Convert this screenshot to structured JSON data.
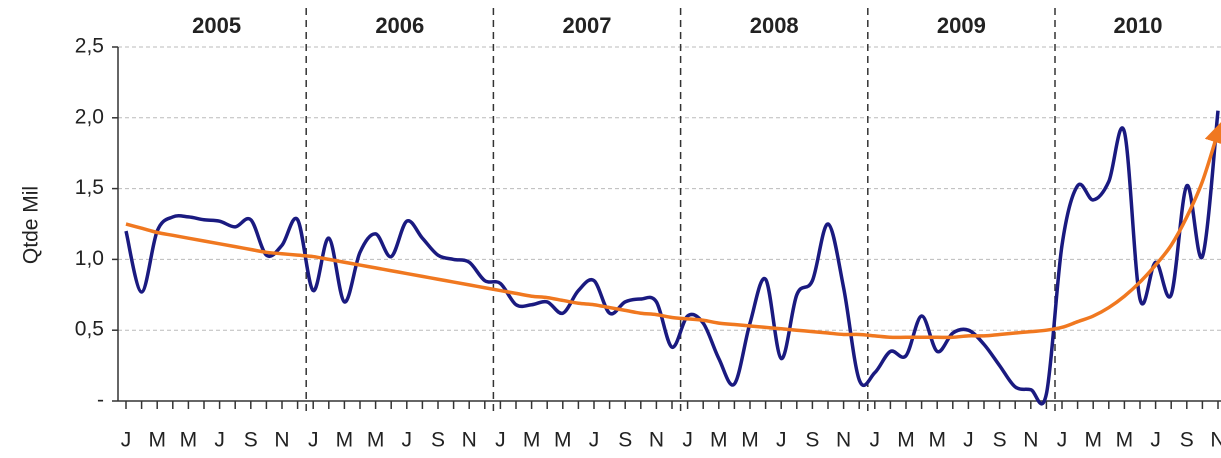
{
  "chart_data": {
    "type": "line",
    "ylabel": "Qtde Mil",
    "year_labels": [
      "2005",
      "2006",
      "2007",
      "2008",
      "2009",
      "2010"
    ],
    "categories": [
      "J",
      null,
      "M",
      null,
      "M",
      null,
      "J",
      null,
      "S",
      null,
      "N",
      null,
      "J",
      null,
      "M",
      null,
      "M",
      null,
      "J",
      null,
      "S",
      null,
      "N",
      null,
      "J",
      null,
      "M",
      null,
      "M",
      null,
      "J",
      null,
      "S",
      null,
      "N",
      null,
      "J",
      null,
      "M",
      null,
      "M",
      null,
      "J",
      null,
      "S",
      null,
      "N",
      null,
      "J",
      null,
      "M",
      null,
      "M",
      null,
      "J",
      null,
      "S",
      null,
      "N",
      null,
      "J",
      null,
      "M",
      null,
      "M",
      null,
      "J",
      null,
      "S",
      null,
      "N"
    ],
    "series": [
      {
        "color": "#1a1a80",
        "values": [
          1.2,
          0.77,
          1.2,
          1.3,
          1.3,
          1.28,
          1.27,
          1.23,
          1.28,
          1.03,
          1.1,
          1.28,
          0.78,
          1.15,
          0.7,
          1.05,
          1.18,
          1.02,
          1.27,
          1.15,
          1.03,
          1.0,
          0.98,
          0.85,
          0.83,
          0.68,
          0.68,
          0.7,
          0.62,
          0.78,
          0.85,
          0.62,
          0.7,
          0.72,
          0.7,
          0.38,
          0.6,
          0.55,
          0.3,
          0.12,
          0.55,
          0.86,
          0.3,
          0.75,
          0.85,
          1.25,
          0.8,
          0.15,
          0.2,
          0.35,
          0.32,
          0.6,
          0.35,
          0.48,
          0.5,
          0.4,
          0.25,
          0.1,
          0.08,
          0.05,
          1.1,
          1.52,
          1.42,
          1.55,
          1.9,
          0.72,
          0.98,
          0.75,
          1.52,
          1.02,
          2.05
        ]
      },
      {
        "color": "#f07820",
        "values": [
          1.25,
          1.22,
          1.19,
          1.17,
          1.15,
          1.13,
          1.11,
          1.09,
          1.07,
          1.05,
          1.04,
          1.03,
          1.02,
          1.0,
          0.98,
          0.96,
          0.94,
          0.92,
          0.9,
          0.88,
          0.86,
          0.84,
          0.82,
          0.8,
          0.78,
          0.76,
          0.74,
          0.73,
          0.71,
          0.69,
          0.68,
          0.66,
          0.64,
          0.62,
          0.61,
          0.59,
          0.58,
          0.57,
          0.55,
          0.54,
          0.53,
          0.52,
          0.51,
          0.5,
          0.49,
          0.48,
          0.47,
          0.47,
          0.46,
          0.45,
          0.45,
          0.45,
          0.45,
          0.45,
          0.46,
          0.46,
          0.47,
          0.48,
          0.49,
          0.5,
          0.52,
          0.56,
          0.6,
          0.66,
          0.74,
          0.84,
          0.96,
          1.1,
          1.3,
          1.55,
          1.9
        ]
      }
    ],
    "ylim": [
      0,
      2.5
    ],
    "yticks": [
      {
        "value": 0,
        "label": "-"
      },
      {
        "value": 0.5,
        "label": "0,5"
      },
      {
        "value": 1.0,
        "label": "1,0"
      },
      {
        "value": 1.5,
        "label": "1,5"
      },
      {
        "value": 2.0,
        "label": "2,0"
      },
      {
        "value": 2.5,
        "label": "2,5"
      }
    ],
    "grid": true
  }
}
